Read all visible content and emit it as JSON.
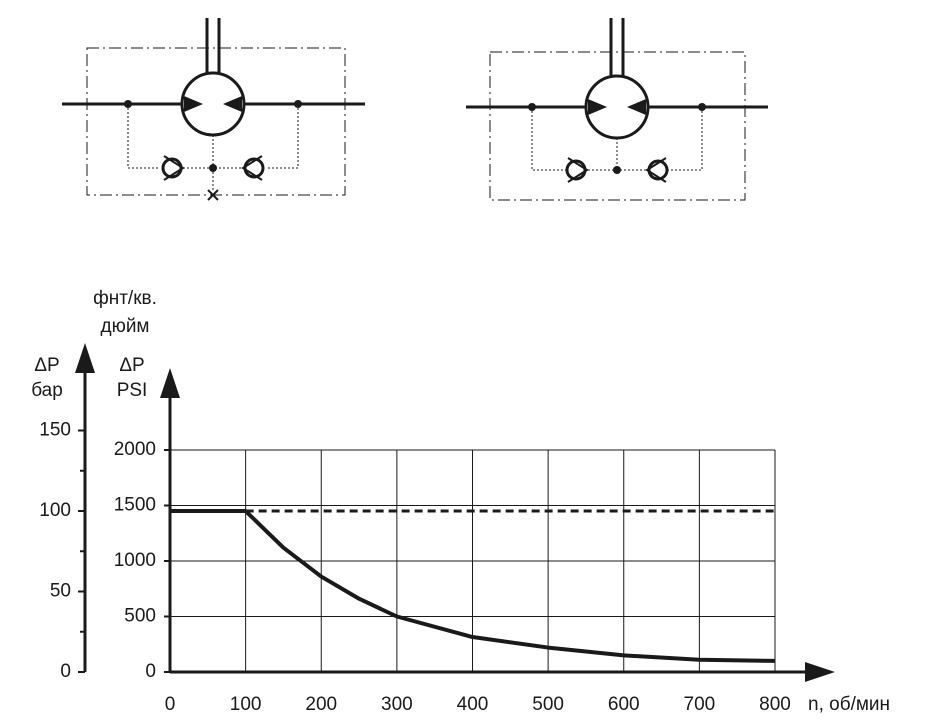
{
  "chart_data": {
    "type": "line",
    "x_label": "n, об/мин",
    "y_label_top": "фнт/кв.",
    "y_label_mid": "дюйм",
    "y_label_symbol": "ΔP",
    "y_label": "PSI",
    "y2_label_symbol": "ΔP",
    "y2_label": "бар",
    "xlim": [
      0,
      800
    ],
    "xticks": [
      0,
      100,
      200,
      300,
      400,
      500,
      600,
      700,
      800
    ],
    "ylim": [
      0,
      2000
    ],
    "yticks": [
      0,
      500,
      1000,
      1500,
      2000
    ],
    "y2lim": [
      0,
      150
    ],
    "y2ticks": [
      0,
      50,
      100,
      150
    ],
    "y2minorticks": [
      25,
      75,
      125
    ],
    "grid": true,
    "series": [
      {
        "color": "#1a1a1a",
        "style": "solid",
        "x": [
          0,
          100,
          150,
          200,
          250,
          300,
          400,
          500,
          600,
          700,
          800
        ],
        "values": [
          1450,
          1450,
          1120,
          860,
          660,
          500,
          315,
          220,
          150,
          110,
          100
        ]
      },
      {
        "color": "#1a1a1a",
        "style": "dashed",
        "x": [
          100,
          800
        ],
        "values": [
          1450,
          1450
        ]
      }
    ]
  }
}
